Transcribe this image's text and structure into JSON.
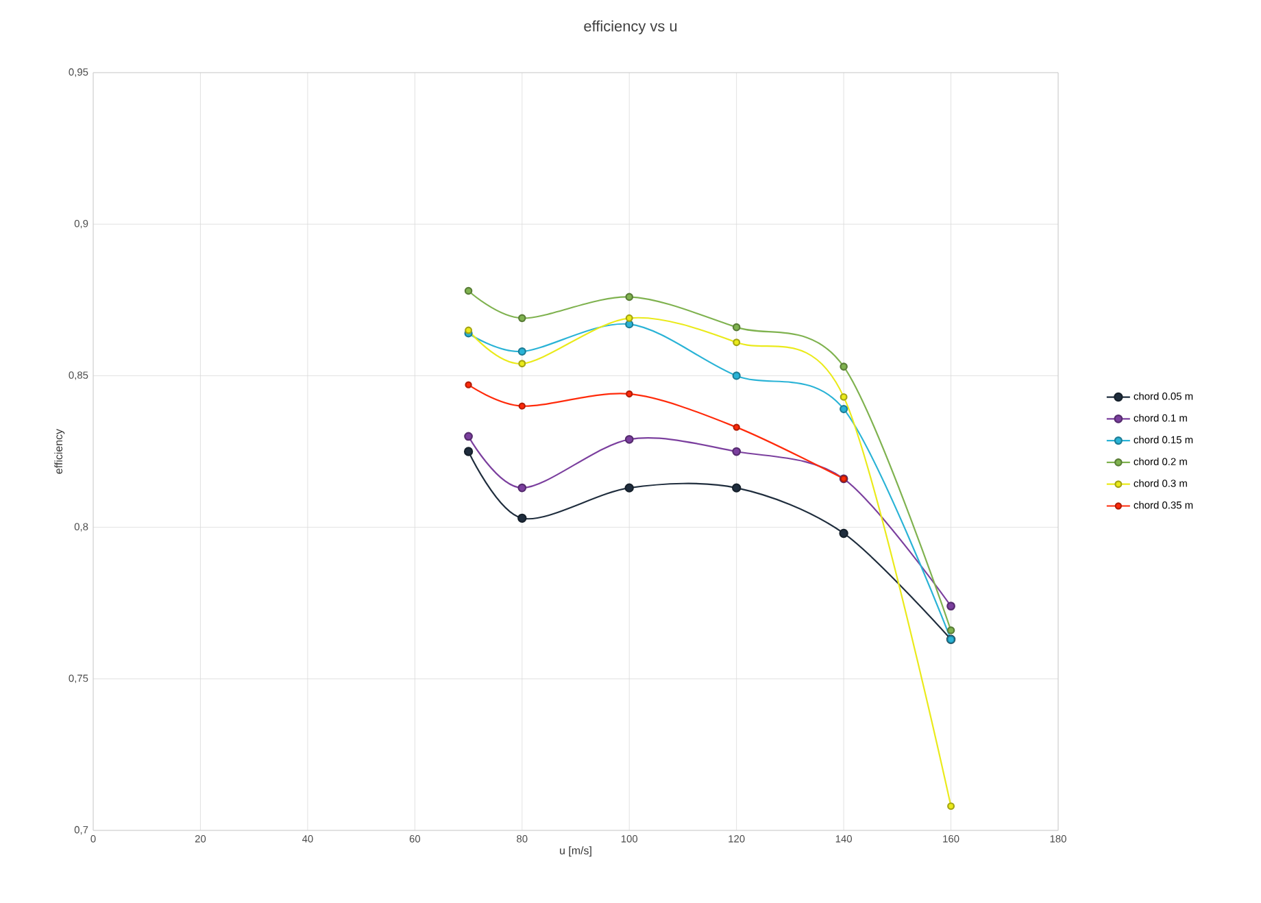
{
  "chart_data": {
    "type": "line",
    "title": "efficiency  vs  u",
    "xlabel": "u [m/s]",
    "ylabel": "efficiency",
    "x": [
      70,
      80,
      100,
      120,
      140,
      160
    ],
    "series": [
      {
        "name": "chord 0.05 m",
        "color": "#1f2d3d",
        "values": [
          0.825,
          0.803,
          0.813,
          0.813,
          0.798,
          0.763
        ]
      },
      {
        "name": "chord 0.1 m",
        "color": "#7b3f9e",
        "values": [
          0.83,
          0.813,
          0.829,
          0.825,
          0.816,
          0.774
        ]
      },
      {
        "name": "chord 0.15 m",
        "color": "#2ab3d6",
        "values": [
          0.864,
          0.858,
          0.867,
          0.85,
          0.839,
          0.763
        ]
      },
      {
        "name": "chord 0.2 m",
        "color": "#7fb24f",
        "values": [
          0.878,
          0.869,
          0.876,
          0.866,
          0.853,
          0.766
        ]
      },
      {
        "name": "chord 0.3 m",
        "color": "#eaea1a",
        "values": [
          0.865,
          0.854,
          0.869,
          0.861,
          0.843,
          0.708
        ]
      },
      {
        "name": "chord 0.35 m",
        "color": "#ff2a0a",
        "values": [
          0.847,
          0.84,
          0.844,
          0.833,
          0.816,
          null
        ]
      }
    ],
    "xlim": [
      0,
      180
    ],
    "xticks": [
      0,
      20,
      40,
      60,
      80,
      100,
      120,
      140,
      160,
      180
    ],
    "ylim": [
      0.7,
      0.95
    ],
    "yticks": [
      {
        "value": 0.7,
        "label": "0,7"
      },
      {
        "value": 0.75,
        "label": "0,75"
      },
      {
        "value": 0.8,
        "label": "0,8"
      },
      {
        "value": 0.85,
        "label": "0,85"
      },
      {
        "value": 0.9,
        "label": "0,9"
      },
      {
        "value": 0.95,
        "label": "0,95"
      }
    ],
    "grid": true,
    "legend": "right",
    "marker": "circle",
    "line_style": "solid"
  }
}
